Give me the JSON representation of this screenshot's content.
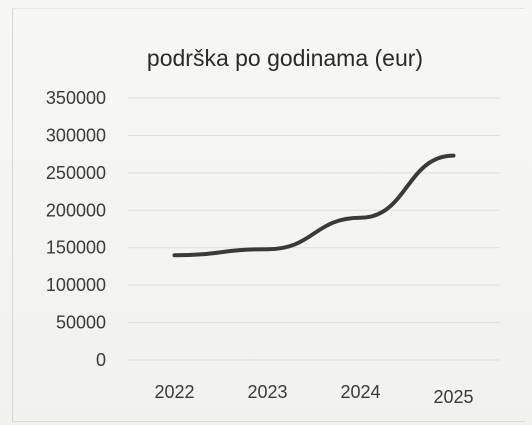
{
  "chart_data": {
    "type": "line",
    "title": "podrška po godinama (eur)",
    "xlabel": "",
    "ylabel": "",
    "categories": [
      "2022",
      "2023",
      "2024",
      "2025"
    ],
    "series": [
      {
        "values": [
          140000,
          148000,
          190000,
          273000
        ]
      }
    ],
    "ylim": [
      0,
      350000
    ],
    "yticks": [
      "350000",
      "300000",
      "250000",
      "200000",
      "150000",
      "100000",
      "50000",
      "0"
    ],
    "grid": true,
    "line_color": "#3a3a3a",
    "grid_color": "#dddddd"
  }
}
